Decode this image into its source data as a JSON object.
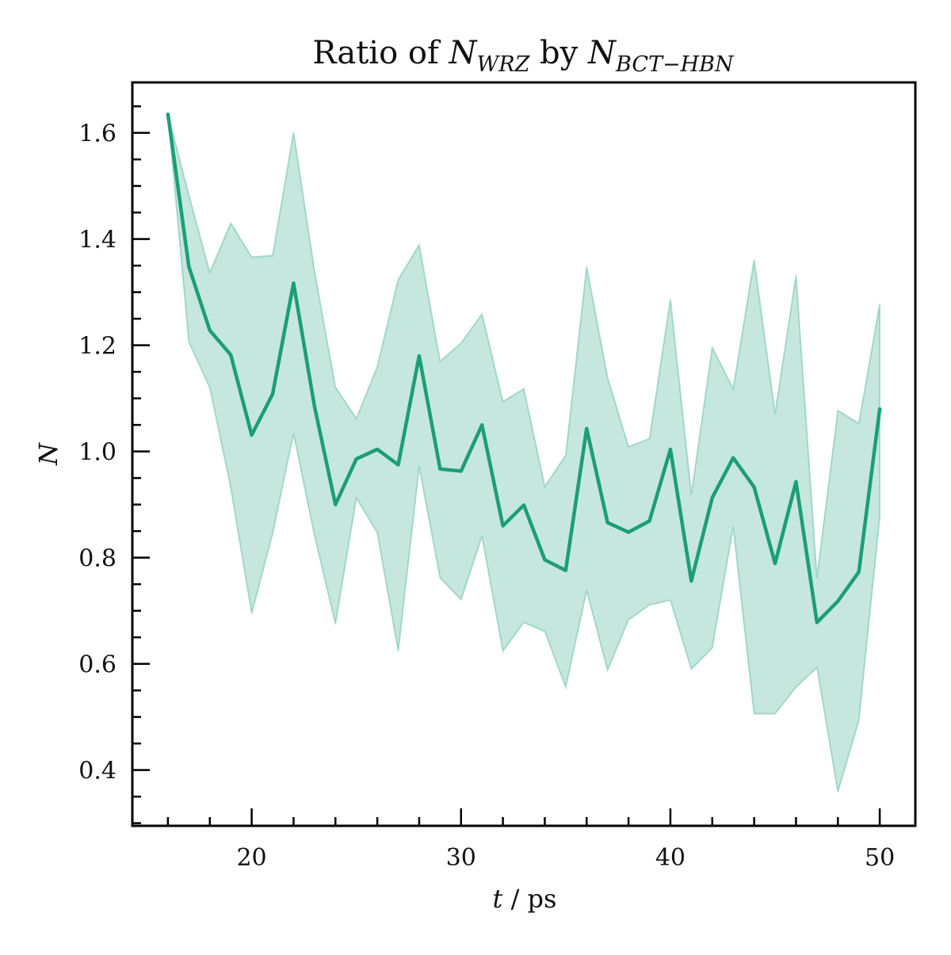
{
  "chart_data": {
    "type": "line",
    "title": {
      "prefix": "Ratio of ",
      "num_symbol": "N",
      "num_subscript": "WRZ",
      "middle": " by ",
      "den_symbol": "N",
      "den_subscript": "BCT−HBN"
    },
    "xlabel": {
      "symbol": "t",
      "unit": " / ps"
    },
    "ylabel": "N",
    "x": [
      16,
      17,
      18,
      19,
      20,
      21,
      22,
      23,
      24,
      25,
      26,
      27,
      28,
      29,
      30,
      31,
      32,
      33,
      34,
      35,
      36,
      37,
      38,
      39,
      40,
      41,
      42,
      43,
      44,
      45,
      46,
      47,
      48,
      49,
      50
    ],
    "series": [
      {
        "values": [
          1.635,
          1.348,
          1.228,
          1.182,
          1.031,
          1.108,
          1.317,
          1.085,
          0.9,
          0.986,
          1.004,
          0.975,
          1.18,
          0.967,
          0.963,
          1.05,
          0.86,
          0.899,
          0.796,
          0.776,
          1.043,
          0.866,
          0.848,
          0.869,
          1.004,
          0.756,
          0.913,
          0.988,
          0.933,
          0.789,
          0.943,
          0.678,
          0.718,
          0.773,
          1.08
        ],
        "upper": [
          1.635,
          1.483,
          1.337,
          1.43,
          1.366,
          1.369,
          1.601,
          1.34,
          1.121,
          1.062,
          1.16,
          1.324,
          1.389,
          1.17,
          1.204,
          1.259,
          1.094,
          1.118,
          0.934,
          0.993,
          1.348,
          1.139,
          1.009,
          1.024,
          1.287,
          0.919,
          1.196,
          1.118,
          1.361,
          1.071,
          1.332,
          0.762,
          1.077,
          1.053,
          1.278
        ],
        "lower": [
          1.635,
          1.206,
          1.12,
          0.932,
          0.695,
          0.845,
          1.034,
          0.842,
          0.675,
          0.912,
          0.847,
          0.624,
          0.971,
          0.762,
          0.721,
          0.84,
          0.624,
          0.678,
          0.661,
          0.556,
          0.738,
          0.588,
          0.683,
          0.711,
          0.72,
          0.59,
          0.63,
          0.858,
          0.506,
          0.506,
          0.556,
          0.593,
          0.359,
          0.493,
          0.877
        ],
        "color": "#1b9e77",
        "fill_color": "#1b9e77",
        "fill_opacity": 0.25
      }
    ],
    "xlim": [
      14.3,
      51.7
    ],
    "ylim": [
      0.295,
      1.695
    ],
    "xticks": [
      20,
      30,
      40,
      50
    ],
    "xtick_labels": [
      "20",
      "30",
      "40",
      "50"
    ],
    "xminor_step": 2,
    "yticks": [
      0.4,
      0.6,
      0.8,
      1.0,
      1.2,
      1.4,
      1.6
    ],
    "ytick_labels": [
      "0.4",
      "0.6",
      "0.8",
      "1.0",
      "1.2",
      "1.4",
      "1.6"
    ],
    "yminor_step": 0.05,
    "grid": false,
    "legend": "none"
  }
}
